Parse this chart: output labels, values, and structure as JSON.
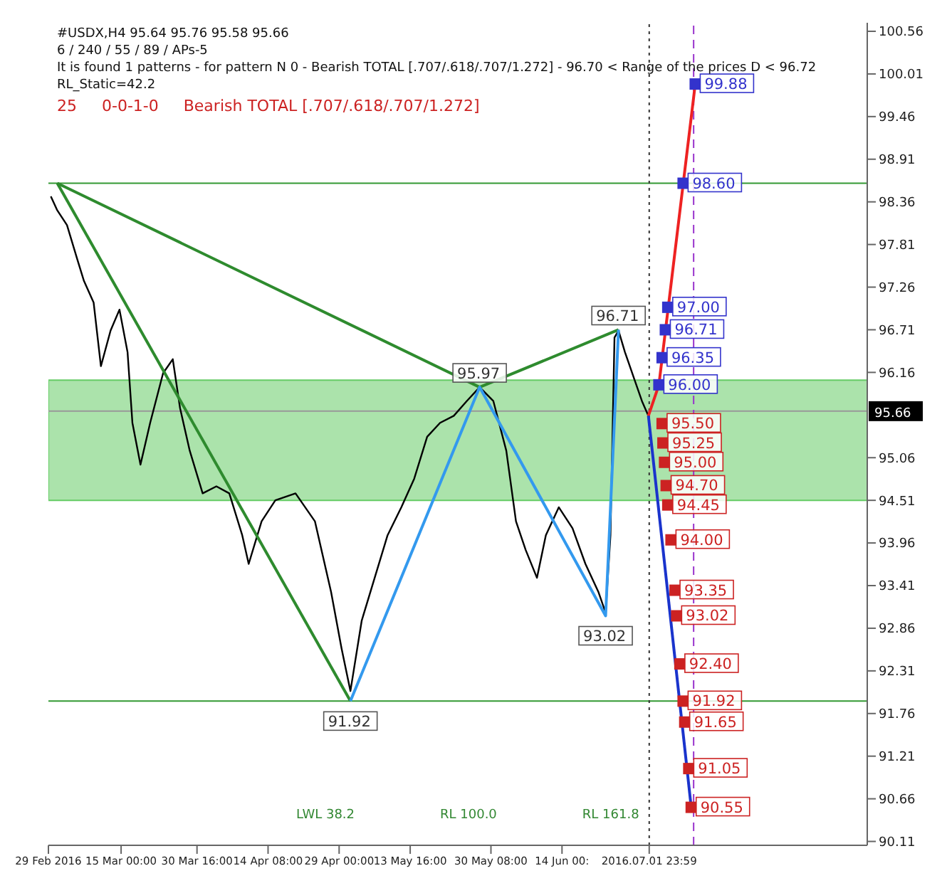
{
  "chart_data": {
    "type": "line",
    "title": "#USDX,H4  95.64 95.76 95.58 95.66",
    "subtitle": "6 / 240 / 55 / 89 / APs-5",
    "annotations": [
      "It is found 1 patterns  -  for pattern N 0 - Bearish TOTAL [.707/.618/.707/1.272] - 96.70 < Range of the prices D < 96.72",
      "RL_Static=42.2",
      "25     0-0-1-0     Bearish TOTAL [.707/.618/.707/1.272]",
      "LWL 38.2",
      "RL 100.0",
      "RL 161.8",
      {
        "text": "96.71",
        "x": "2016-06-25T16:00",
        "y": 96.71
      },
      {
        "text": "95.97",
        "x": "2016-05-28T00:00",
        "y": 95.97
      },
      {
        "text": "93.02",
        "x": "2016-06-23T00:00",
        "y": 93.02
      },
      {
        "text": "91.92",
        "x": "2016-05-01T08:00",
        "y": 91.92
      }
    ],
    "xlim": [
      "2016-02-29",
      "2016-08-16"
    ],
    "xticks": [
      {
        "value": "2016-02-29",
        "label": "29 Feb 2016"
      },
      {
        "value": "2016-03-15T00:00",
        "label": "15 Mar 00:00"
      },
      {
        "value": "2016-03-30T16:00",
        "label": "30 Mar 16:00"
      },
      {
        "value": "2016-04-14T08:00",
        "label": "14 Apr 08:00"
      },
      {
        "value": "2016-04-29T00:00",
        "label": "29 Apr 00:00"
      },
      {
        "value": "2016-05-13T16:00",
        "label": "13 May 16:00"
      },
      {
        "value": "2016-05-30T08:00",
        "label": "30 May 08:00"
      },
      {
        "value": "2016-06-14T00:00",
        "label": "14 Jun 00:"
      },
      {
        "value": "2016-07-01T23:59",
        "label": "2016.07.01 23:59"
      }
    ],
    "ylim": [
      90.06,
      100.67
    ],
    "yticks": [
      90.11,
      90.66,
      91.21,
      91.76,
      92.31,
      92.86,
      93.41,
      93.96,
      94.51,
      95.06,
      96.16,
      96.71,
      97.26,
      97.81,
      98.36,
      98.91,
      99.46,
      100.01,
      100.56
    ],
    "marker": "none",
    "line_style": "solid",
    "bands": [
      {
        "axis": "y",
        "from": 94.51,
        "to": 96.06,
        "label": null,
        "color": "#66cc66"
      }
    ],
    "ref_lines": [
      {
        "axis": "y",
        "value": 98.6,
        "label": null,
        "color": "#339933"
      },
      {
        "axis": "y",
        "value": 91.92,
        "label": null,
        "color": "#339933"
      },
      {
        "axis": "y",
        "value": 95.66,
        "label": "95.66",
        "color": "#999999"
      },
      {
        "axis": "x",
        "value": "2016-07-01T23:59",
        "label": null,
        "color": "#333333",
        "line_style": "dotted"
      },
      {
        "axis": "x",
        "value": "2016-07-11T04:00",
        "label": null,
        "color": "#9933cc",
        "line_style": "dashed"
      }
    ],
    "series": [
      {
        "color": "#000000",
        "x": [
          "2016-02-29T12:00",
          "2016-03-01T20:00",
          "2016-03-03T20:00",
          "2016-03-06T00:00",
          "2016-03-07T08:00",
          "2016-03-09T08:00",
          "2016-03-10T20:00",
          "2016-03-12T20:00",
          "2016-03-14T16:00",
          "2016-03-16T08:00",
          "2016-03-17T08:00",
          "2016-03-19T00:00",
          "2016-03-21T00:00",
          "2016-03-23T16:00",
          "2016-03-25T16:00",
          "2016-03-27T04:00",
          "2016-03-29T04:00",
          "2016-03-31T20:00",
          "2016-04-03T16:00",
          "2016-04-06T08:00",
          "2016-04-09T00:00",
          "2016-04-10T08:00",
          "2016-04-13T00:00",
          "2016-04-15T20:00",
          "2016-04-20T00:00",
          "2016-04-24T00:00",
          "2016-04-27T08:00",
          "2016-04-29T12:00",
          "2016-05-01T08:00",
          "2016-05-03T16:00",
          "2016-05-06T08:00",
          "2016-05-09T00:00",
          "2016-05-11T20:00",
          "2016-05-14T12:00",
          "2016-05-17T04:00",
          "2016-05-19T20:00",
          "2016-05-22T16:00",
          "2016-05-25T08:00",
          "2016-05-28T00:00",
          "2016-05-30T20:00",
          "2016-06-02T12:00",
          "2016-06-04T12:00",
          "2016-06-06T12:00",
          "2016-06-08T20:00",
          "2016-06-10T16:00",
          "2016-06-13T08:00",
          "2016-06-16T04:00",
          "2016-06-18T20:00",
          "2016-06-21T12:00",
          "2016-06-23T00:00",
          "2016-06-24T00:00",
          "2016-06-24T20:00",
          "2016-06-25T16:00",
          "2016-06-27T00:00",
          "2016-06-29T00:00",
          "2016-06-30T12:00",
          "2016-07-01T20:00"
        ],
        "values": [
          98.43,
          98.25,
          98.06,
          97.61,
          97.34,
          97.06,
          96.24,
          96.7,
          96.97,
          96.42,
          95.51,
          94.97,
          95.51,
          96.15,
          96.33,
          95.7,
          95.15,
          94.6,
          94.69,
          94.6,
          94.06,
          93.69,
          94.24,
          94.51,
          94.6,
          94.24,
          93.33,
          92.6,
          92.05,
          92.96,
          93.51,
          94.06,
          94.42,
          94.79,
          95.33,
          95.51,
          95.6,
          95.79,
          95.97,
          95.79,
          95.15,
          94.24,
          93.87,
          93.51,
          94.06,
          94.42,
          94.15,
          93.69,
          93.33,
          93.06,
          94.06,
          96.61,
          96.7,
          96.42,
          96.06,
          95.79,
          95.6
        ]
      },
      {
        "color": "#2e8b2e",
        "x": [
          "2016-03-01T20:00",
          "2016-05-01T08:00"
        ],
        "values": [
          98.6,
          91.92
        ]
      },
      {
        "color": "#2e8b2e",
        "x": [
          "2016-03-01T20:00",
          "2016-05-28T00:00",
          "2016-06-25T16:00"
        ],
        "values": [
          98.6,
          95.97,
          96.71
        ]
      },
      {
        "color": "#3399ee",
        "x": [
          "2016-05-01T08:00",
          "2016-05-28T00:00",
          "2016-06-23T00:00",
          "2016-06-25T16:00"
        ],
        "values": [
          91.92,
          95.97,
          93.02,
          96.71
        ]
      },
      {
        "color": "#ee2222",
        "x": [
          "2016-07-01T20:00",
          "2016-07-04T00:00",
          "2016-07-11T12:00"
        ],
        "values": [
          95.6,
          96.0,
          99.88
        ]
      },
      {
        "color": "#1a33cc",
        "x": [
          "2016-07-01T20:00",
          "2016-07-10T16:00"
        ],
        "values": [
          95.6,
          90.55
        ]
      },
      {
        "type": "scatter",
        "marker": "square",
        "color": "#3333cc",
        "x": [
          "2016-07-04T00:00",
          "2016-07-04T16:00",
          "2016-07-05T08:00",
          "2016-07-05T20:00",
          "2016-07-09T00:00",
          "2016-07-11T12:00"
        ],
        "values": [
          96.0,
          96.35,
          96.71,
          97.0,
          98.6,
          99.88
        ],
        "value_labels": [
          "96.00",
          "96.35",
          "96.71",
          "97.00",
          "98.60",
          "99.88"
        ]
      },
      {
        "type": "scatter",
        "marker": "square",
        "color": "#cc2222",
        "x": [
          "2016-07-04T16:00",
          "2016-07-04T20:00",
          "2016-07-05T04:00",
          "2016-07-05T12:00",
          "2016-07-05T20:00",
          "2016-07-06T12:00",
          "2016-07-07T08:00",
          "2016-07-07T16:00",
          "2016-07-08T08:00",
          "2016-07-09T00:00",
          "2016-07-09T08:00",
          "2016-07-10T04:00",
          "2016-07-10T16:00"
        ],
        "values": [
          95.5,
          95.25,
          95.0,
          94.7,
          94.45,
          94.0,
          93.35,
          93.02,
          92.4,
          91.92,
          91.65,
          91.05,
          90.55
        ],
        "value_labels": [
          "95.50",
          "95.25",
          "95.00",
          "94.70",
          "94.45",
          "94.00",
          "93.35",
          "93.02",
          "92.40",
          "91.92",
          "91.65",
          "91.05",
          "90.55"
        ]
      }
    ]
  }
}
